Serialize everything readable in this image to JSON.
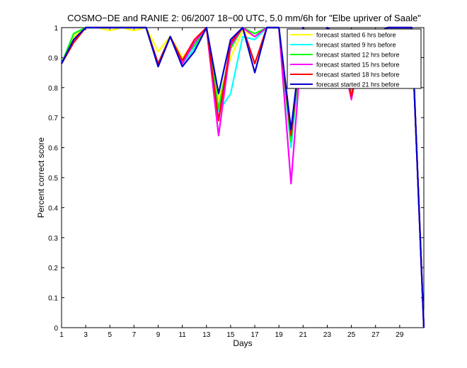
{
  "chart_data": {
    "type": "line",
    "title": "COSMO−DE and RANIE 2: 06/2007 18−00 UTC, 5.0 mm/6h for \"Elbe upriver of Saale\"",
    "xlabel": "Days",
    "ylabel": "Percent correct score",
    "xlim": [
      1,
      31
    ],
    "ylim": [
      0,
      1
    ],
    "x_ticks": [
      "1",
      "3",
      "5",
      "7",
      "9",
      "11",
      "13",
      "15",
      "17",
      "19",
      "21",
      "23",
      "25",
      "27",
      "29"
    ],
    "y_ticks": [
      "0",
      "0.1",
      "0.2",
      "0.3",
      "0.4",
      "0.5",
      "0.6",
      "0.7",
      "0.8",
      "0.9",
      "1"
    ],
    "legend_position": "top-right",
    "grid": false,
    "x": [
      1,
      2,
      3,
      4,
      5,
      6,
      7,
      8,
      9,
      10,
      11,
      12,
      13,
      14,
      15,
      16,
      17,
      18,
      19,
      20,
      21,
      22,
      23,
      24,
      25,
      26,
      27,
      28,
      29,
      30,
      31
    ],
    "series": [
      {
        "name": "forecast started 6 hrs before",
        "color": "#ffff00",
        "values": [
          0.88,
          0.97,
          1.0,
          1.0,
          0.99,
          1.0,
          0.99,
          1.0,
          0.92,
          0.97,
          0.9,
          0.95,
          1.0,
          0.76,
          0.9,
          0.99,
          0.97,
          1.0,
          1.0,
          0.65,
          1.0,
          0.93,
          1.0,
          0.97,
          0.82,
          0.97,
          0.97,
          1.0,
          0.98,
          1.0,
          0.0
        ]
      },
      {
        "name": "forecast started 9 hrs before",
        "color": "#00ffff",
        "values": [
          0.88,
          0.98,
          1.0,
          1.0,
          1.0,
          1.0,
          1.0,
          1.0,
          0.88,
          0.97,
          0.88,
          0.93,
          1.0,
          0.72,
          0.78,
          0.97,
          0.96,
          1.0,
          1.0,
          0.6,
          1.0,
          0.92,
          1.0,
          0.97,
          0.79,
          0.97,
          0.97,
          1.0,
          1.0,
          1.0,
          0.0
        ]
      },
      {
        "name": "forecast started 12 hrs before",
        "color": "#00ff00",
        "values": [
          0.88,
          0.98,
          1.0,
          1.0,
          1.0,
          1.0,
          1.0,
          1.0,
          0.88,
          0.97,
          0.89,
          0.94,
          1.0,
          0.73,
          0.93,
          1.0,
          0.98,
          1.0,
          1.0,
          0.62,
          1.0,
          0.94,
          1.0,
          0.97,
          0.83,
          0.98,
          0.97,
          1.0,
          1.0,
          1.0,
          0.0
        ]
      },
      {
        "name": "forecast started 15 hrs before",
        "color": "#ff00ff",
        "values": [
          0.88,
          0.96,
          1.0,
          1.0,
          1.0,
          1.0,
          1.0,
          1.0,
          0.87,
          0.97,
          0.88,
          0.95,
          1.0,
          0.64,
          0.94,
          1.0,
          0.97,
          1.0,
          1.0,
          0.48,
          1.0,
          0.93,
          1.0,
          0.96,
          0.76,
          0.98,
          0.97,
          1.0,
          1.0,
          1.0,
          0.0
        ]
      },
      {
        "name": "forecast started 18 hrs before",
        "color": "#ff0000",
        "values": [
          0.88,
          0.95,
          1.0,
          1.0,
          1.0,
          1.0,
          1.0,
          1.0,
          0.88,
          0.97,
          0.89,
          0.96,
          1.0,
          0.69,
          0.95,
          1.0,
          0.88,
          1.0,
          1.0,
          0.64,
          1.0,
          0.93,
          1.0,
          0.97,
          0.77,
          0.98,
          0.97,
          1.0,
          1.0,
          1.0,
          0.0
        ]
      },
      {
        "name": "forecast started 21 hrs before",
        "color": "#0000cd",
        "values": [
          0.88,
          0.96,
          1.0,
          1.0,
          1.0,
          1.0,
          1.0,
          1.0,
          0.87,
          0.97,
          0.87,
          0.92,
          1.0,
          0.78,
          0.96,
          1.0,
          0.85,
          1.0,
          1.0,
          0.66,
          1.0,
          0.91,
          1.0,
          0.97,
          0.8,
          0.98,
          0.98,
          1.0,
          1.0,
          1.0,
          0.0
        ]
      }
    ]
  }
}
